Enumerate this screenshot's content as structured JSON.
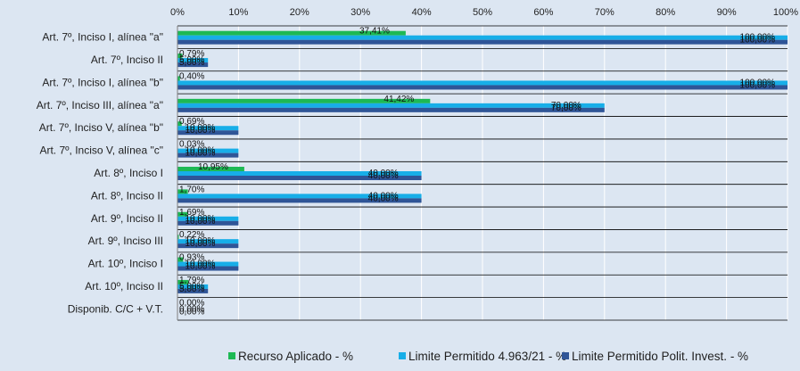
{
  "chart_data": {
    "type": "bar",
    "orientation": "horizontal",
    "xlim": [
      0,
      100
    ],
    "x_ticks": [
      0,
      10,
      20,
      30,
      40,
      50,
      60,
      70,
      80,
      90,
      100
    ],
    "x_tick_labels": [
      "0%",
      "10%",
      "20%",
      "30%",
      "40%",
      "50%",
      "60%",
      "70%",
      "80%",
      "90%",
      "100%"
    ],
    "x_axis_position": "top",
    "grid": true,
    "legend_position": "bottom",
    "categories": [
      "Art. 7º, Inciso I, alínea \"a\"",
      "Art. 7º, Inciso II",
      "Art. 7º, Inciso I, alínea \"b\"",
      "Art. 7º, Inciso III, alínea \"a\"",
      "Art. 7º, Inciso V, alínea \"b\"",
      "Art. 7º, Inciso V, alínea \"c\"",
      "Art. 8º, Inciso I",
      "Art. 8º, Inciso II",
      "Art. 9º, Inciso II",
      "Art. 9º, Inciso III",
      "Art. 10º, Inciso I",
      "Art. 10º, Inciso II",
      "Disponib. C/C + V.T."
    ],
    "series": [
      {
        "name": "Recurso Aplicado - %",
        "color": "#1db954",
        "values": [
          37.41,
          0.79,
          0.4,
          41.42,
          0.69,
          0.03,
          10.95,
          1.7,
          1.69,
          0.22,
          0.93,
          1.79,
          0.0
        ],
        "labels": [
          "37,41%",
          "0,79%",
          "0,40%",
          "41,42%",
          "0,69%",
          "0,03%",
          "10,95%",
          "1,70%",
          "1,69%",
          "0,22%",
          "0,93%",
          "1,79%",
          "0,00%"
        ]
      },
      {
        "name": "Limite Permitido 4.963/21 - %",
        "color": "#17aee8",
        "values": [
          100,
          5,
          100,
          70,
          10,
          10,
          40,
          40,
          10,
          10,
          10,
          5,
          0
        ],
        "labels": [
          "100,00%",
          "5,00%",
          "100,00%",
          "70,00%",
          "10,00%",
          "10,00%",
          "40,00%",
          "40,00%",
          "10,00%",
          "10,00%",
          "10,00%",
          "5,00%",
          "0,00%"
        ]
      },
      {
        "name": "Limite Permitido Polit. Invest. - %",
        "color": "#2f5597",
        "values": [
          100,
          5,
          100,
          70,
          10,
          10,
          40,
          40,
          10,
          10,
          10,
          5,
          0
        ],
        "labels": [
          "100,00%",
          "5,00%",
          "100,00%",
          "70,00%",
          "10,00%",
          "10,00%",
          "40,00%",
          "40,00%",
          "10,00%",
          "10,00%",
          "10,00%",
          "5,00%",
          "0,00%"
        ]
      }
    ]
  }
}
